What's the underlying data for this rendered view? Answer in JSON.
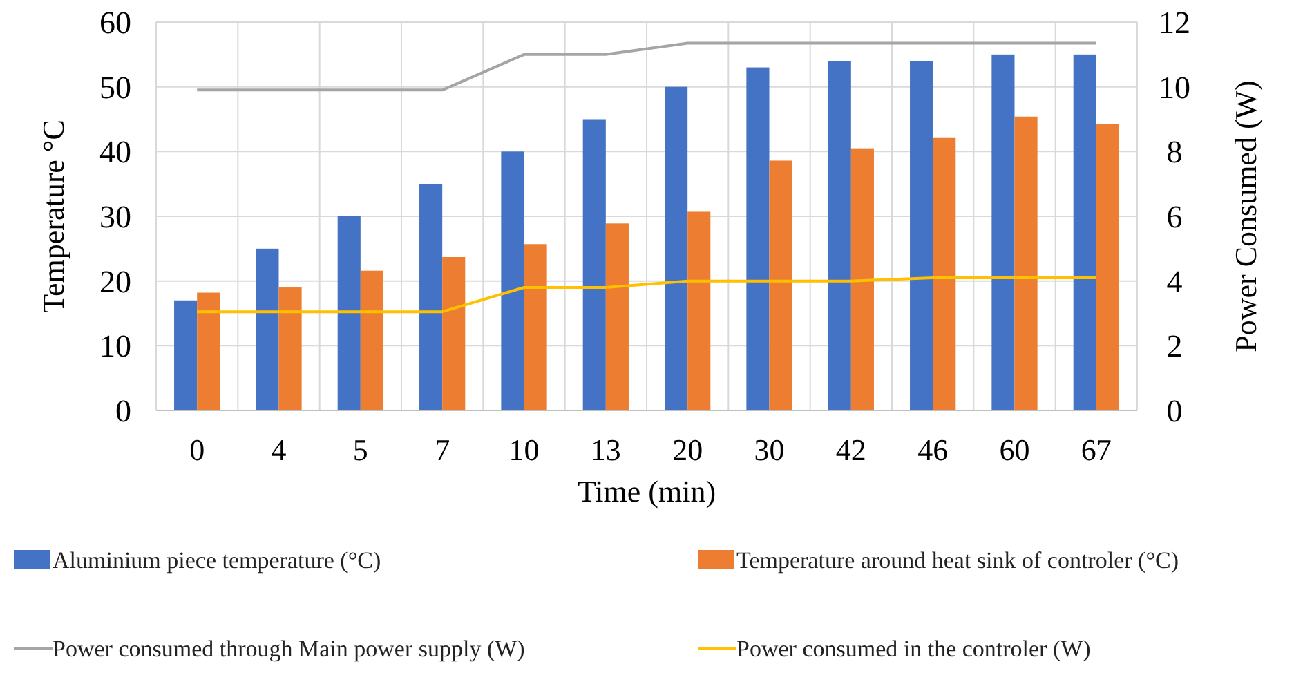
{
  "chart_data": {
    "type": "bar",
    "xlabel": "Time (min)",
    "ylabel": "Temperature °C",
    "y2label": "Power Consumed (W)",
    "categories": [
      "0",
      "4",
      "5",
      "7",
      "10",
      "13",
      "20",
      "30",
      "42",
      "46",
      "60",
      "67"
    ],
    "series": [
      {
        "name": "Aluminium piece temperature  (°C)",
        "color": "#4472c4",
        "values": [
          17,
          25,
          30,
          35,
          40,
          45,
          50,
          53,
          54,
          54,
          55,
          55
        ]
      },
      {
        "name": "Temperature around heat sink of controler  (°C)",
        "color": "#ed7d31",
        "values": [
          18.2,
          19,
          21.6,
          23.7,
          25.7,
          28.9,
          30.7,
          38.6,
          40.5,
          42.2,
          45.4,
          44.3
        ]
      },
      {
        "name": "Power consumed through Main power supply  (W)",
        "type": "line",
        "axis": "y2",
        "color": "#a5a5a5",
        "values": [
          9.9,
          9.9,
          9.9,
          9.9,
          11,
          11,
          11.35,
          11.35,
          11.35,
          11.35,
          11.35,
          11.35
        ]
      },
      {
        "name": "Power consumed in the controler (W)",
        "type": "line",
        "axis": "y2",
        "color": "#ffc000",
        "values": [
          3.05,
          3.05,
          3.05,
          3.05,
          3.8,
          3.8,
          4,
          4,
          4,
          4.1,
          4.1,
          4.1
        ]
      }
    ],
    "ylim": [
      0,
      60
    ],
    "yticks": [
      0,
      10,
      20,
      30,
      40,
      50,
      60
    ],
    "y2lim": [
      0,
      12
    ],
    "y2ticks": [
      0,
      2,
      4,
      6,
      8,
      10,
      12
    ],
    "grid": true,
    "legend": "bottom",
    "marker": "none",
    "line_style": "solid"
  }
}
